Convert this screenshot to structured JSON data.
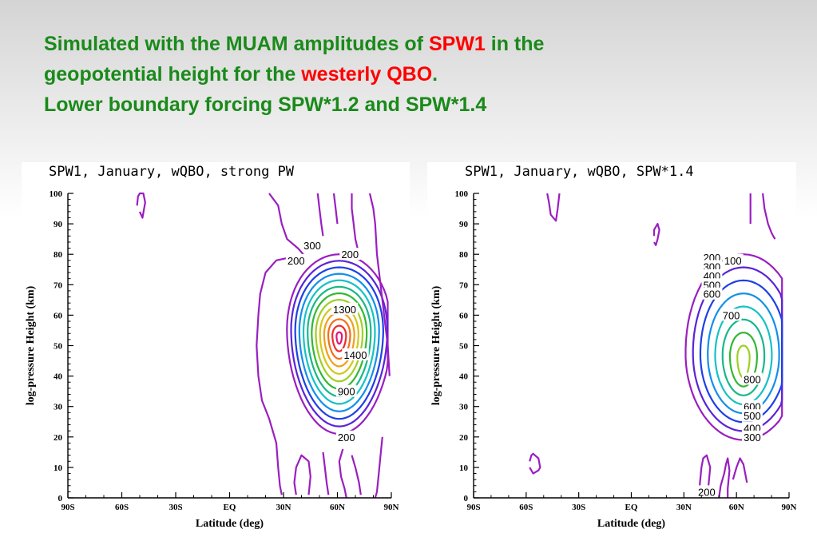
{
  "slide": {
    "title_line1_a": "Simulated with the MUAM amplitudes of ",
    "title_line1_b": "SPW1",
    "title_line1_c": " in the",
    "title_line2_a": "geopotential height for the ",
    "title_line2_b": "westerly QBO",
    "title_line2_c": ".",
    "title_line3": "Lower boundary forcing SPW*1.2 and SPW*1.4",
    "text_color": "#1a8a1a",
    "highlight_color": "#ff0000"
  },
  "chart_data": [
    {
      "type": "contour",
      "title": "SPW1, January, wQBO, strong PW",
      "xlabel": "Latitude (deg)",
      "ylabel": "log-pressure Height (km)",
      "xlim": [
        -90,
        90
      ],
      "ylim": [
        0,
        100
      ],
      "x_ticks": [
        -90,
        -60,
        -30,
        0,
        30,
        60,
        90
      ],
      "x_tick_labels": [
        "90S",
        "60S",
        "30S",
        "EQ",
        "30N",
        "60N",
        "90N"
      ],
      "y_ticks": [
        0,
        10,
        20,
        30,
        40,
        50,
        60,
        70,
        80,
        90,
        100
      ],
      "y_tick_labels": [
        "0",
        "10",
        "20",
        "30",
        "40",
        "50",
        "60",
        "70",
        "80",
        "90",
        "100"
      ],
      "contour_interval": 100,
      "max_center": {
        "lat": 61,
        "height": 53,
        "value": 1450
      },
      "contour_labels": [
        {
          "text": "300",
          "lat": 46,
          "height": 83
        },
        {
          "text": "200",
          "lat": 67,
          "height": 80
        },
        {
          "text": "200",
          "lat": 37,
          "height": 78
        },
        {
          "text": "1300",
          "lat": 64,
          "height": 62
        },
        {
          "text": "1400",
          "lat": 70,
          "height": 47
        },
        {
          "text": "900",
          "lat": 65,
          "height": 35
        },
        {
          "text": "200",
          "lat": 65,
          "height": 20
        }
      ]
    },
    {
      "type": "contour",
      "title": "SPW1, January, wQBO, SPW*1.4",
      "xlabel": "Latitude (deg)",
      "ylabel": "log-pressure Height (km)",
      "xlim": [
        -90,
        90
      ],
      "ylim": [
        0,
        100
      ],
      "x_ticks": [
        -90,
        -60,
        -30,
        0,
        30,
        60,
        90
      ],
      "x_tick_labels": [
        "90S",
        "60S",
        "30S",
        "EQ",
        "30N",
        "60N",
        "90N"
      ],
      "y_ticks": [
        0,
        10,
        20,
        30,
        40,
        50,
        60,
        70,
        80,
        90,
        100
      ],
      "y_tick_labels": [
        "0",
        "10",
        "20",
        "30",
        "40",
        "50",
        "60",
        "70",
        "80",
        "90",
        "100"
      ],
      "contour_interval": 100,
      "max_center": {
        "lat": 64,
        "height": 46,
        "value": 850
      },
      "contour_labels": [
        {
          "text": "200",
          "lat": 46,
          "height": 79
        },
        {
          "text": "100",
          "lat": 58,
          "height": 78
        },
        {
          "text": "300",
          "lat": 46,
          "height": 76
        },
        {
          "text": "400",
          "lat": 46,
          "height": 73
        },
        {
          "text": "500",
          "lat": 46,
          "height": 70
        },
        {
          "text": "600",
          "lat": 46,
          "height": 67
        },
        {
          "text": "700",
          "lat": 57,
          "height": 60
        },
        {
          "text": "800",
          "lat": 69,
          "height": 39
        },
        {
          "text": "600",
          "lat": 69,
          "height": 30
        },
        {
          "text": "500",
          "lat": 69,
          "height": 27
        },
        {
          "text": "400",
          "lat": 69,
          "height": 23
        },
        {
          "text": "300",
          "lat": 69,
          "height": 20
        },
        {
          "text": "200",
          "lat": 43,
          "height": 2
        }
      ]
    }
  ]
}
